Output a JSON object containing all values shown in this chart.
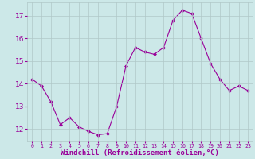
{
  "x": [
    0,
    1,
    2,
    3,
    4,
    5,
    6,
    7,
    8,
    9,
    10,
    11,
    12,
    13,
    14,
    15,
    16,
    17,
    18,
    19,
    20,
    21,
    22,
    23
  ],
  "y": [
    14.2,
    13.9,
    13.2,
    12.2,
    12.5,
    12.1,
    11.9,
    11.75,
    11.8,
    13.0,
    14.8,
    15.6,
    15.4,
    15.3,
    15.6,
    16.8,
    17.25,
    17.1,
    16.0,
    14.9,
    14.2,
    13.7,
    13.9,
    13.7
  ],
  "line_color": "#990099",
  "marker": "D",
  "marker_size": 2,
  "bg_color": "#cce8e8",
  "grid_color": "#b0c8c8",
  "xlabel": "Windchill (Refroidissement éolien,°C)",
  "xlabel_color": "#990099",
  "tick_color": "#990099",
  "ylim": [
    11.5,
    17.6
  ],
  "xlim": [
    -0.5,
    23.5
  ],
  "yticks": [
    12,
    13,
    14,
    15,
    16,
    17
  ],
  "xticks": [
    0,
    1,
    2,
    3,
    4,
    5,
    6,
    7,
    8,
    9,
    10,
    11,
    12,
    13,
    14,
    15,
    16,
    17,
    18,
    19,
    20,
    21,
    22,
    23
  ],
  "xtick_labels": [
    "0",
    "1",
    "2",
    "3",
    "4",
    "5",
    "6",
    "7",
    "8",
    "9",
    "10",
    "11",
    "12",
    "13",
    "14",
    "15",
    "16",
    "17",
    "18",
    "19",
    "20",
    "21",
    "22",
    "23"
  ],
  "figsize": [
    3.2,
    2.0
  ],
  "dpi": 100
}
